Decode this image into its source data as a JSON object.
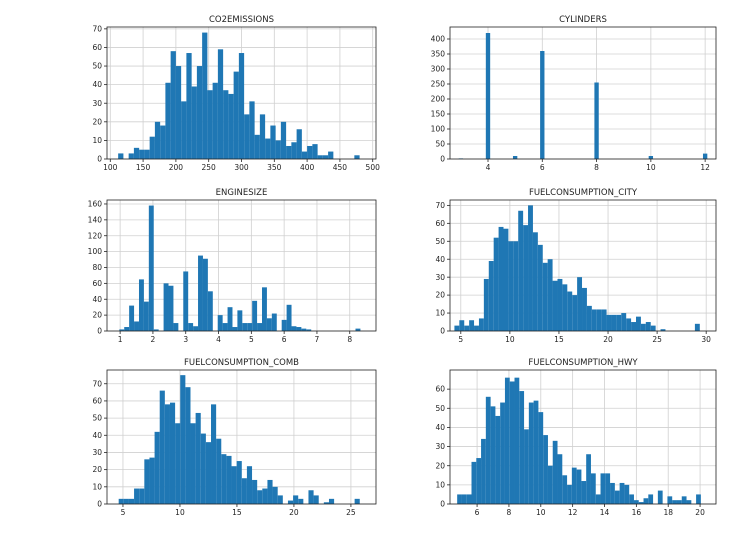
{
  "figure": {
    "bar_color": "#1f77b4",
    "grid": true
  },
  "chart_data": [
    {
      "type": "bar",
      "title": "CO2EMISSIONS",
      "xlim": [
        95,
        505
      ],
      "ylim": [
        0,
        71
      ],
      "xticks": [
        100,
        150,
        200,
        250,
        300,
        350,
        400,
        450,
        500
      ],
      "yticks": [
        0,
        10,
        20,
        30,
        40,
        50,
        60,
        70
      ],
      "bins": [
        108,
        116,
        124,
        132,
        140,
        148,
        156,
        164,
        172,
        180,
        188,
        196,
        204,
        212,
        220,
        228,
        236,
        244,
        252,
        260,
        268,
        276,
        284,
        292,
        300,
        308,
        316,
        324,
        332,
        340,
        348,
        356,
        364,
        372,
        380,
        388,
        396,
        404,
        412,
        420,
        428,
        436,
        444,
        452,
        460,
        468,
        476,
        484
      ],
      "counts": [
        0,
        3,
        0,
        3,
        6,
        5,
        5,
        12,
        20,
        18,
        41,
        58,
        50,
        31,
        57,
        39,
        50,
        68,
        37,
        41,
        59,
        37,
        35,
        47,
        57,
        24,
        31,
        13,
        24,
        11,
        18,
        10,
        20,
        7,
        9,
        16,
        4,
        7,
        8,
        2,
        2,
        4,
        0,
        0,
        0,
        0,
        2,
        0
      ]
    },
    {
      "type": "bar",
      "title": "CYLINDERS",
      "xlim": [
        2.6,
        12.4
      ],
      "ylim": [
        0,
        440
      ],
      "xticks": [
        4,
        6,
        8,
        10,
        12
      ],
      "yticks": [
        0,
        50,
        100,
        150,
        200,
        250,
        300,
        350,
        400
      ],
      "bins": [
        3,
        4,
        5,
        6,
        8,
        10,
        12
      ],
      "counts": [
        2,
        420,
        10,
        360,
        255,
        10,
        18
      ]
    },
    {
      "type": "bar",
      "title": "ENGINESIZE",
      "xlim": [
        0.6,
        8.8
      ],
      "ylim": [
        0,
        165
      ],
      "xticks": [
        1,
        2,
        3,
        4,
        5,
        6,
        7,
        8
      ],
      "yticks": [
        0,
        20,
        40,
        60,
        80,
        100,
        120,
        140,
        160
      ],
      "bins": [
        1.05,
        1.2,
        1.35,
        1.5,
        1.65,
        1.8,
        1.95,
        2.1,
        2.25,
        2.4,
        2.55,
        2.7,
        2.85,
        3.0,
        3.15,
        3.3,
        3.45,
        3.6,
        3.75,
        3.9,
        4.05,
        4.2,
        4.35,
        4.5,
        4.65,
        4.8,
        4.95,
        5.1,
        5.25,
        5.4,
        5.55,
        5.7,
        5.85,
        6.0,
        6.15,
        6.3,
        6.45,
        6.6,
        6.75,
        6.9,
        7.05,
        7.2,
        7.35,
        7.5,
        7.65,
        7.8,
        7.95,
        8.1,
        8.25,
        8.4
      ],
      "counts": [
        2,
        5,
        32,
        12,
        65,
        37,
        158,
        2,
        0,
        60,
        57,
        10,
        0,
        75,
        10,
        6,
        95,
        91,
        50,
        0,
        20,
        10,
        30,
        5,
        26,
        10,
        10,
        38,
        10,
        55,
        16,
        22,
        0,
        14,
        33,
        6,
        5,
        3,
        2,
        0,
        0,
        0,
        0,
        0,
        0,
        0,
        0,
        0,
        3,
        0
      ]
    },
    {
      "type": "bar",
      "title": "FUELCONSUMPTION_CITY",
      "xlim": [
        3.9,
        31.0
      ],
      "ylim": [
        0,
        73
      ],
      "xticks": [
        5,
        10,
        15,
        20,
        25,
        30
      ],
      "yticks": [
        0,
        10,
        20,
        30,
        40,
        50,
        60,
        70
      ],
      "bins": [
        4.6,
        5.1,
        5.6,
        6.1,
        6.6,
        7.1,
        7.6,
        8.1,
        8.6,
        9.1,
        9.6,
        10.1,
        10.6,
        11.1,
        11.6,
        12.1,
        12.6,
        13.1,
        13.6,
        14.1,
        14.6,
        15.1,
        15.6,
        16.1,
        16.6,
        17.1,
        17.6,
        18.1,
        18.6,
        19.1,
        19.6,
        20.1,
        20.6,
        21.1,
        21.6,
        22.1,
        22.6,
        23.1,
        23.6,
        24.1,
        24.6,
        25.1,
        25.6,
        26.1,
        26.6,
        27.1,
        27.6,
        28.1,
        28.6,
        29.1,
        29.6
      ],
      "counts": [
        3,
        6,
        3,
        6,
        3,
        7,
        29,
        39,
        52,
        58,
        57,
        50,
        50,
        67,
        59,
        70,
        55,
        48,
        38,
        40,
        28,
        29,
        26,
        22,
        20,
        30,
        24,
        14,
        12,
        12,
        12,
        9,
        9,
        9,
        10,
        7,
        5,
        8,
        4,
        5,
        3,
        0,
        1,
        0,
        0,
        0,
        0,
        0,
        0,
        4,
        0
      ]
    },
    {
      "type": "bar",
      "title": "FUELCONSUMPTION_COMB",
      "xlim": [
        3.6,
        27.2
      ],
      "ylim": [
        0,
        78
      ],
      "xticks": [
        5,
        10,
        15,
        20,
        25
      ],
      "yticks": [
        0,
        10,
        20,
        30,
        40,
        50,
        60,
        70
      ],
      "bins": [
        4.85,
        5.3,
        5.75,
        6.2,
        6.65,
        7.1,
        7.55,
        8.0,
        8.45,
        8.9,
        9.35,
        9.8,
        10.25,
        10.7,
        11.15,
        11.6,
        12.05,
        12.5,
        12.95,
        13.4,
        13.85,
        14.3,
        14.75,
        15.2,
        15.65,
        16.1,
        16.55,
        17.0,
        17.45,
        17.9,
        18.35,
        18.8,
        19.25,
        19.7,
        20.15,
        20.6,
        21.05,
        21.5,
        21.95,
        22.4,
        22.85,
        23.3,
        23.75,
        24.2,
        24.65,
        25.1,
        25.55
      ],
      "counts": [
        3,
        3,
        3,
        9,
        9,
        26,
        27,
        42,
        66,
        58,
        59,
        47,
        75,
        68,
        47,
        53,
        41,
        36,
        58,
        38,
        29,
        28,
        22,
        25,
        15,
        22,
        14,
        8,
        9,
        14,
        10,
        5,
        0,
        2,
        5,
        3,
        0,
        8,
        5,
        0,
        1,
        3,
        0,
        0,
        0,
        0,
        3
      ]
    },
    {
      "type": "bar",
      "title": "FUELCONSUMPTION_HWY",
      "xlim": [
        4.3,
        21.0
      ],
      "ylim": [
        0,
        70
      ],
      "xticks": [
        6,
        8,
        10,
        12,
        14,
        16,
        18,
        20
      ],
      "yticks": [
        0,
        10,
        20,
        30,
        40,
        50,
        60
      ],
      "bins": [
        4.9,
        5.2,
        5.5,
        5.8,
        6.1,
        6.4,
        6.7,
        7.0,
        7.3,
        7.6,
        7.9,
        8.2,
        8.5,
        8.8,
        9.1,
        9.4,
        9.7,
        10.0,
        10.3,
        10.6,
        10.9,
        11.2,
        11.5,
        11.8,
        12.1,
        12.4,
        12.7,
        13.0,
        13.3,
        13.6,
        13.9,
        14.2,
        14.5,
        14.8,
        15.1,
        15.4,
        15.7,
        16.0,
        16.3,
        16.6,
        16.9,
        17.2,
        17.5,
        17.8,
        18.1,
        18.4,
        18.7,
        19.0,
        19.3,
        19.6,
        19.9,
        20.2
      ],
      "counts": [
        5,
        5,
        5,
        22,
        24,
        34,
        56,
        51,
        46,
        53,
        66,
        64,
        66,
        59,
        39,
        53,
        54,
        48,
        36,
        20,
        33,
        26,
        15,
        10,
        19,
        18,
        12,
        26,
        16,
        5,
        16,
        16,
        11,
        7,
        11,
        10,
        5,
        2,
        1,
        3,
        5,
        0,
        7,
        0,
        4,
        2,
        2,
        4,
        2,
        0,
        5,
        0
      ]
    }
  ]
}
